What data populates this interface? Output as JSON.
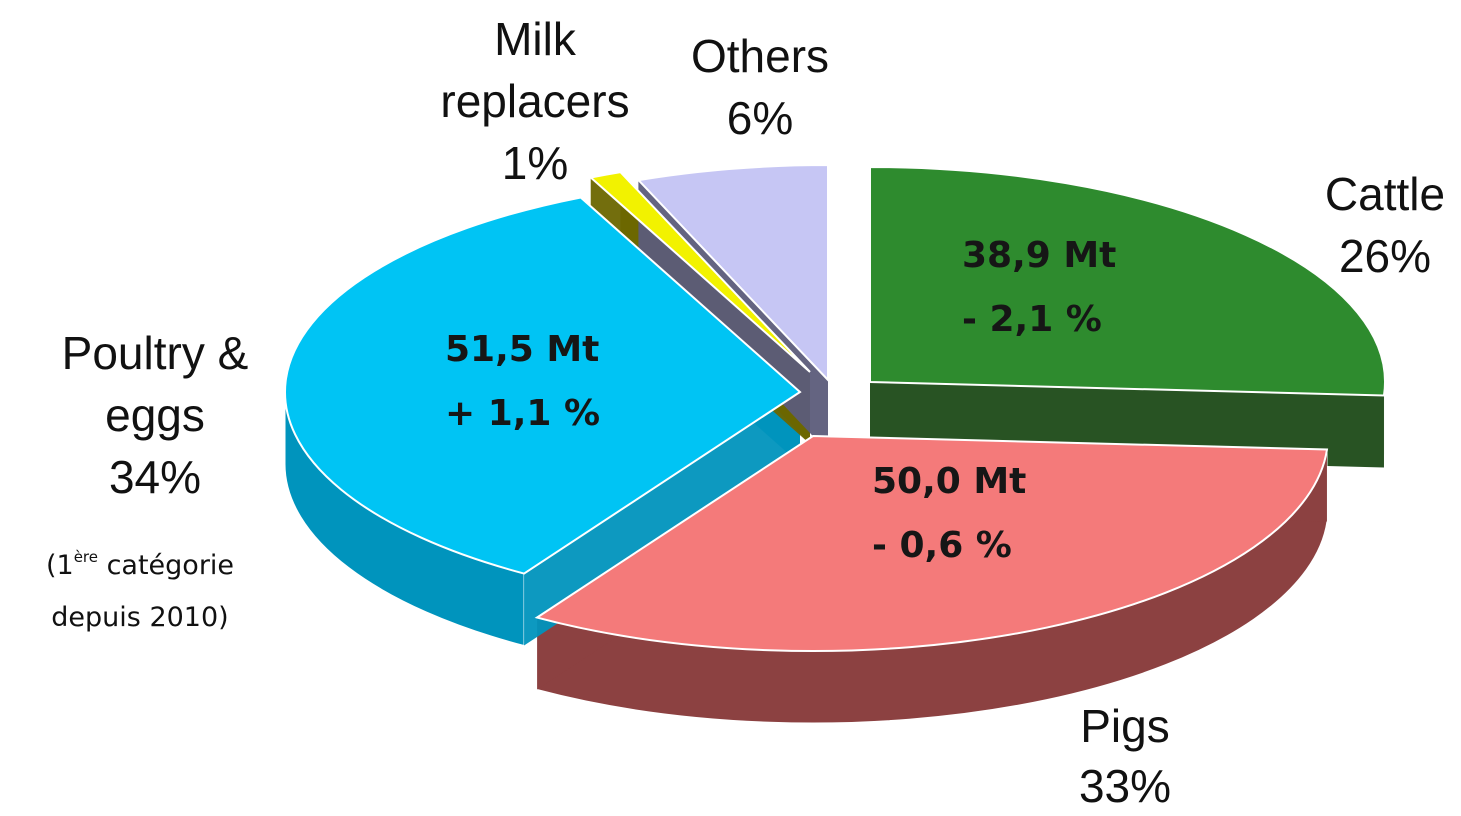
{
  "chart_data": {
    "type": "pie",
    "slices": [
      {
        "key": "cattle",
        "label": "Cattle",
        "pct": 26,
        "pct_text": "26%",
        "tonnage": "38,9  Mt",
        "change": "- 2,1 %",
        "color": "#2e8b2e",
        "side_color": "#1c4a17"
      },
      {
        "key": "pigs",
        "label": "Pigs",
        "pct": 33,
        "pct_text": "33%",
        "tonnage": "50,0  Mt",
        "change": "- 0,6 %",
        "color": "#f47a7a",
        "side_color": "#8c4141"
      },
      {
        "key": "poultry",
        "label": "Poultry & eggs",
        "pct": 34,
        "pct_text": "34%",
        "tonnage": "51,5  Mt",
        "change": "+ 1,1 %",
        "color": "#00c4f4",
        "side_color": "#0094bd"
      },
      {
        "key": "milk",
        "label": "Milk replacers",
        "pct": 1,
        "pct_text": "1%",
        "color": "#f2f200",
        "side_color": "#6b6600"
      },
      {
        "key": "others",
        "label": "Others",
        "pct": 6,
        "pct_text": "6%",
        "color": "#c6c6f4",
        "side_color": "#5c5c7a"
      }
    ]
  },
  "labels": {
    "milk": {
      "line1": "Milk",
      "line2": "replacers",
      "line3": "1%"
    },
    "others": {
      "line1": "Others",
      "line2": "6%"
    },
    "cattle": {
      "line1": "Cattle",
      "line2": "26%"
    },
    "poultry": {
      "line1": "Poultry &",
      "line2": "eggs",
      "line3": "34%"
    },
    "pigs": {
      "line1": "Pigs",
      "line2": "33%"
    }
  },
  "note": {
    "open": "(1",
    "sup": "ère",
    "rest": " catégorie",
    "line2": "depuis 2010)"
  }
}
